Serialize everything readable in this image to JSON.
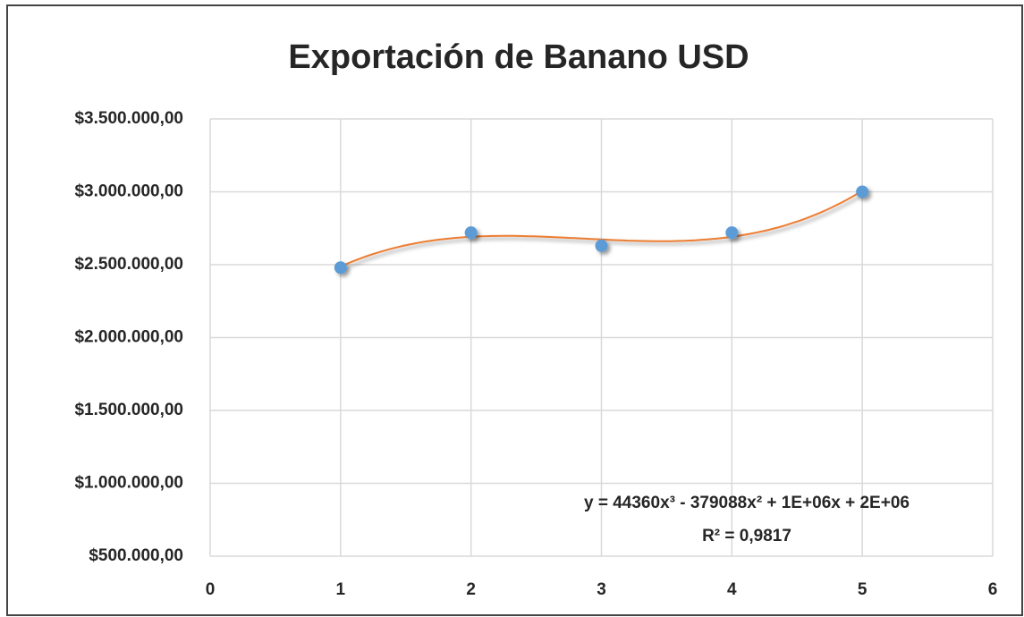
{
  "chart_data": {
    "type": "scatter",
    "title": "Exportación de Banano USD",
    "x": [
      1,
      2,
      3,
      4,
      5
    ],
    "series": [
      {
        "color": "#5b9bd5",
        "values": [
          2480000,
          2720000,
          2630000,
          2720000,
          3000000
        ]
      }
    ],
    "trendline": {
      "type": "polynomial",
      "order": 3,
      "color": "#ed7d31"
    },
    "annotations": [
      "y = 44360x³ - 379088x² + 1E+06x + 2E+06",
      "R² = 0,9817"
    ],
    "xlim": [
      0,
      6
    ],
    "xticks": [
      0,
      1,
      2,
      3,
      4,
      5,
      6
    ],
    "ylim": [
      500000,
      3500000
    ],
    "yticks": [
      {
        "value": 500000,
        "label": "$500.000,00"
      },
      {
        "value": 1000000,
        "label": "$1.000.000,00"
      },
      {
        "value": 1500000,
        "label": "$1.500.000,00"
      },
      {
        "value": 2000000,
        "label": "$2.000.000,00"
      },
      {
        "value": 2500000,
        "label": "$2.500.000,00"
      },
      {
        "value": 3000000,
        "label": "$3.000.000,00"
      },
      {
        "value": 3500000,
        "label": "$3.500.000,00"
      }
    ],
    "grid": true
  }
}
